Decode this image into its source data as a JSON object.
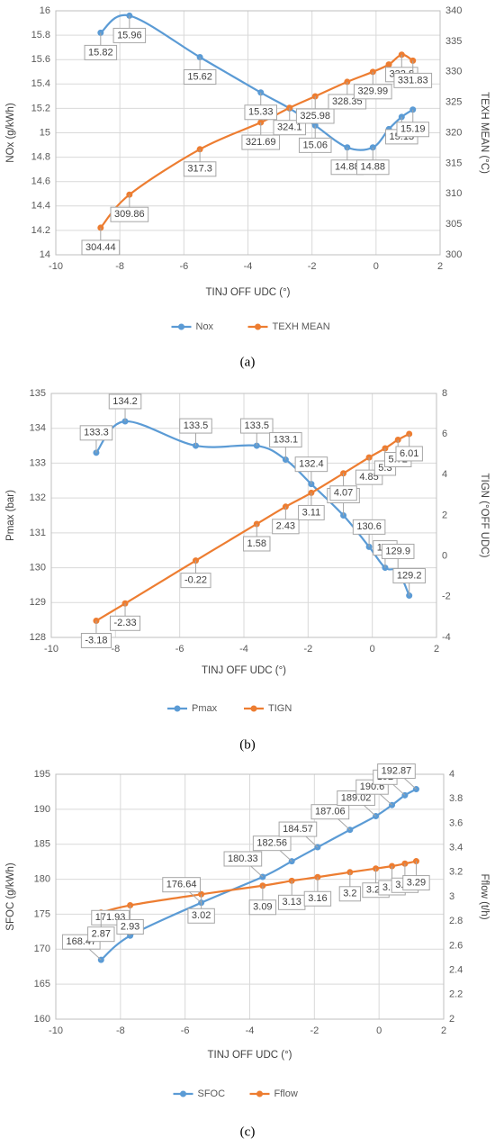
{
  "chart_data": [
    {
      "type": "line",
      "caption": "(a)",
      "xlabel": "TINJ OFF UDC (°)",
      "ylabel": "NOx (g/kWh)",
      "y2label": "TEXH MEAN (°C)",
      "x": [
        -8.6,
        -7.7,
        -5.5,
        -3.6,
        -2.7,
        -1.9,
        -0.9,
        -0.1,
        0.4,
        0.8,
        1.15
      ],
      "xlim": [
        -10,
        2
      ],
      "xticks": [
        -10,
        -8,
        -6,
        -4,
        -2,
        0,
        2
      ],
      "ylim": [
        14,
        16
      ],
      "yticks": [
        14,
        14.2,
        14.4,
        14.6,
        14.8,
        15,
        15.2,
        15.4,
        15.6,
        15.8,
        16
      ],
      "y2lim": [
        300,
        340
      ],
      "y2ticks": [
        300,
        305,
        310,
        315,
        320,
        325,
        330,
        335,
        340
      ],
      "grid": true,
      "legend": "bottom",
      "series": [
        {
          "name": "Nox",
          "color": "#5b9bd5",
          "values": [
            15.82,
            15.96,
            15.62,
            15.33,
            15.2,
            15.06,
            14.88,
            14.88,
            15.03,
            15.13,
            15.19
          ],
          "value_labels": [
            "15.82",
            "15.96",
            "15.62",
            "15.33",
            null,
            "15.06",
            "14.88",
            "14.88",
            null,
            "15.13",
            "15.19"
          ]
        },
        {
          "name": "TEXH MEAN",
          "color": "#ed7d31",
          "axis": "y2",
          "values": [
            304.44,
            309.86,
            317.3,
            321.69,
            324.1,
            325.98,
            328.35,
            329.99,
            331.2,
            332.8,
            331.83
          ],
          "value_labels": [
            "304.44",
            "309.86",
            "317.3",
            "321.69",
            "324.1",
            "325.98",
            "328.35",
            "329.99",
            null,
            "332.8",
            "331.83"
          ]
        }
      ]
    },
    {
      "type": "line",
      "caption": "(b)",
      "xlabel": "TINJ OFF UDC (°)",
      "ylabel": "Pmax (bar)",
      "y2label": "TIGN (°OFF UDC)",
      "x": [
        -8.6,
        -7.7,
        -5.5,
        -3.6,
        -2.7,
        -1.9,
        -0.9,
        -0.1,
        0.4,
        0.8,
        1.15
      ],
      "xlim": [
        -10,
        2
      ],
      "xticks": [
        -10,
        -8,
        -6,
        -4,
        -2,
        0,
        2
      ],
      "ylim": [
        128,
        135
      ],
      "yticks": [
        128,
        129,
        130,
        131,
        132,
        133,
        134,
        135
      ],
      "y2lim": [
        -4,
        8
      ],
      "y2ticks": [
        -4,
        -2,
        0,
        2,
        4,
        6,
        8
      ],
      "grid": true,
      "legend": "bottom",
      "series": [
        {
          "name": "Pmax",
          "color": "#5b9bd5",
          "values": [
            133.3,
            134.2,
            133.5,
            133.5,
            133.1,
            132.4,
            131.5,
            130.6,
            130,
            129.9,
            129.2
          ]
        },
        {
          "name": "TIGN",
          "color": "#ed7d31",
          "axis": "y2",
          "values": [
            -3.18,
            -2.33,
            -0.22,
            1.58,
            2.43,
            3.11,
            4.07,
            4.85,
            5.3,
            5.72,
            6.01
          ]
        }
      ]
    },
    {
      "type": "line",
      "caption": "(c)",
      "xlabel": "TINJ OFF UDC (°)",
      "ylabel": "SFOC (g/kWh)",
      "y2label": "Fflow (t/h)",
      "x": [
        -8.6,
        -7.7,
        -5.5,
        -3.6,
        -2.7,
        -1.9,
        -0.9,
        -0.1,
        0.4,
        0.8,
        1.15
      ],
      "xlim": [
        -10,
        2
      ],
      "xticks": [
        -10,
        -8,
        -6,
        -4,
        -2,
        0,
        2
      ],
      "ylim": [
        160,
        195
      ],
      "yticks": [
        160,
        165,
        170,
        175,
        180,
        185,
        190,
        195
      ],
      "y2lim": [
        2,
        4
      ],
      "y2ticks": [
        2,
        2.2,
        2.4,
        2.6,
        2.8,
        3,
        3.2,
        3.4,
        3.6,
        3.8,
        4
      ],
      "grid": true,
      "legend": "bottom",
      "series": [
        {
          "name": "SFOC",
          "color": "#5b9bd5",
          "values": [
            168.47,
            171.93,
            176.64,
            180.33,
            182.56,
            184.57,
            187.06,
            189.02,
            190.6,
            192,
            192.87
          ]
        },
        {
          "name": "Fflow",
          "color": "#ed7d31",
          "axis": "y2",
          "values": [
            2.87,
            2.93,
            3.02,
            3.09,
            3.13,
            3.16,
            3.2,
            3.23,
            3.25,
            3.27,
            3.29
          ]
        }
      ]
    }
  ]
}
